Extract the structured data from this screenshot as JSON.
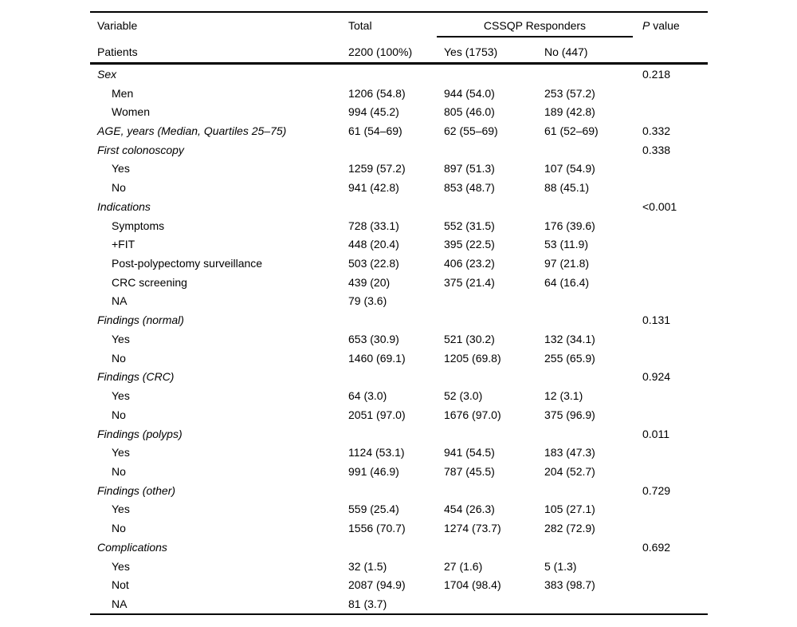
{
  "colors": {
    "background": "#ffffff",
    "text": "#000000",
    "rules": "#000000"
  },
  "table": {
    "header": {
      "col_variable": "Variable",
      "col_total": "Total",
      "col_group": "CSSQP Responders",
      "col_p_italic": "P",
      "col_p_rest": " value",
      "patients_row": {
        "label": "Patients",
        "total": "2200 (100%)",
        "yes": "Yes (1753)",
        "no": "No (447)"
      }
    },
    "rows": [
      {
        "type": "group",
        "label": "Sex",
        "total": "",
        "yes": "",
        "no": "",
        "p": "0.218"
      },
      {
        "type": "sub",
        "label": "Men",
        "total": "1206 (54.8)",
        "yes": "944 (54.0)",
        "no": "253 (57.2)",
        "p": ""
      },
      {
        "type": "sub",
        "label": "Women",
        "total": "994 (45.2)",
        "yes": "805 (46.0)",
        "no": "189 (42.8)",
        "p": ""
      },
      {
        "type": "group",
        "label": "AGE, years (Median, Quartiles 25–75)",
        "total": "61 (54–69)",
        "yes": "62 (55–69)",
        "no": "61 (52–69)",
        "p": "0.332"
      },
      {
        "type": "group",
        "label": "First colonoscopy",
        "total": "",
        "yes": "",
        "no": "",
        "p": "0.338"
      },
      {
        "type": "sub",
        "label": "Yes",
        "total": "1259 (57.2)",
        "yes": "897 (51.3)",
        "no": "107 (54.9)",
        "p": ""
      },
      {
        "type": "sub",
        "label": "No",
        "total": "941 (42.8)",
        "yes": "853 (48.7)",
        "no": "88 (45.1)",
        "p": ""
      },
      {
        "type": "group",
        "label": "Indications",
        "total": "",
        "yes": "",
        "no": "",
        "p": "<0.001"
      },
      {
        "type": "sub",
        "label": "Symptoms",
        "total": "728 (33.1)",
        "yes": "552 (31.5)",
        "no": "176 (39.6)",
        "p": ""
      },
      {
        "type": "sub",
        "label": "+FIT",
        "total": "448 (20.4)",
        "yes": "395 (22.5)",
        "no": "53 (11.9)",
        "p": ""
      },
      {
        "type": "sub",
        "label": "Post-polypectomy surveillance",
        "total": "503 (22.8)",
        "yes": "406 (23.2)",
        "no": "97 (21.8)",
        "p": ""
      },
      {
        "type": "sub",
        "label": "CRC screening",
        "total": "439 (20)",
        "yes": "375 (21.4)",
        "no": "64 (16.4)",
        "p": ""
      },
      {
        "type": "sub",
        "label": "NA",
        "total": "79 (3.6)",
        "yes": "",
        "no": "",
        "p": ""
      },
      {
        "type": "group",
        "label": "Findings (normal)",
        "total": "",
        "yes": "",
        "no": "",
        "p": "0.131"
      },
      {
        "type": "sub",
        "label": "Yes",
        "total": "653 (30.9)",
        "yes": "521 (30.2)",
        "no": "132 (34.1)",
        "p": ""
      },
      {
        "type": "sub",
        "label": "No",
        "total": "1460 (69.1)",
        "yes": "1205 (69.8)",
        "no": "255 (65.9)",
        "p": ""
      },
      {
        "type": "group",
        "label": "Findings (CRC)",
        "total": "",
        "yes": "",
        "no": "",
        "p": "0.924"
      },
      {
        "type": "sub",
        "label": "Yes",
        "total": "64 (3.0)",
        "yes": "52 (3.0)",
        "no": "12 (3.1)",
        "p": ""
      },
      {
        "type": "sub",
        "label": "No",
        "total": "2051 (97.0)",
        "yes": "1676 (97.0)",
        "no": "375 (96.9)",
        "p": ""
      },
      {
        "type": "group",
        "label": "Findings (polyps)",
        "total": "",
        "yes": "",
        "no": "",
        "p": "0.011"
      },
      {
        "type": "sub",
        "label": "Yes",
        "total": "1124 (53.1)",
        "yes": "941 (54.5)",
        "no": "183 (47.3)",
        "p": ""
      },
      {
        "type": "sub",
        "label": "No",
        "total": "991 (46.9)",
        "yes": "787 (45.5)",
        "no": "204 (52.7)",
        "p": ""
      },
      {
        "type": "group",
        "label": "Findings (other)",
        "total": "",
        "yes": "",
        "no": "",
        "p": "0.729"
      },
      {
        "type": "sub",
        "label": "Yes",
        "total": "559 (25.4)",
        "yes": "454 (26.3)",
        "no": "105 (27.1)",
        "p": ""
      },
      {
        "type": "sub",
        "label": "No",
        "total": "1556 (70.7)",
        "yes": "1274 (73.7)",
        "no": "282 (72.9)",
        "p": ""
      },
      {
        "type": "group",
        "label": "Complications",
        "total": "",
        "yes": "",
        "no": "",
        "p": "0.692"
      },
      {
        "type": "sub",
        "label": "Yes",
        "total": "32 (1.5)",
        "yes": "27 (1.6)",
        "no": "5 (1.3)",
        "p": ""
      },
      {
        "type": "sub",
        "label": "Not",
        "total": "2087 (94.9)",
        "yes": "1704 (98.4)",
        "no": "383 (98.7)",
        "p": ""
      },
      {
        "type": "sub",
        "label": "NA",
        "total": "81 (3.7)",
        "yes": "",
        "no": "",
        "p": ""
      }
    ]
  }
}
